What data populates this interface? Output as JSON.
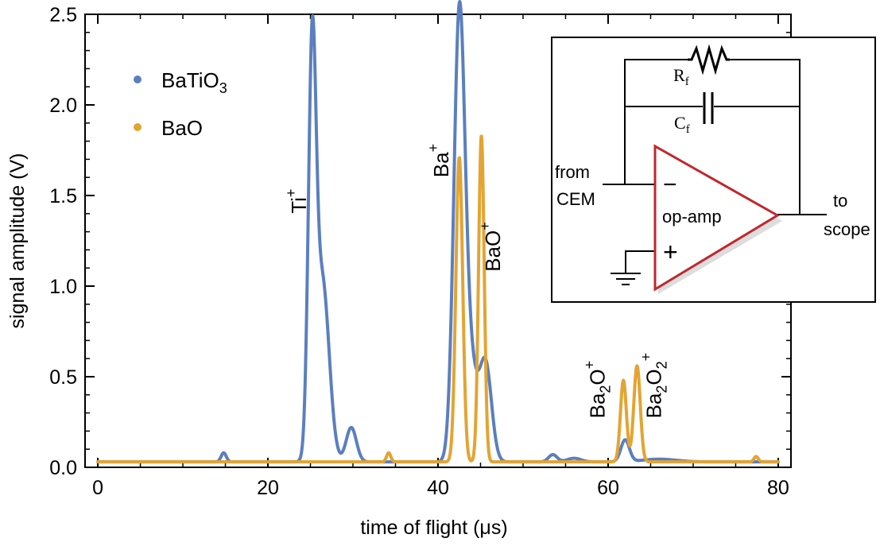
{
  "chart_data": {
    "type": "line",
    "title": "",
    "xlabel": "time of flight (μs)",
    "ylabel": "signal amplitude (V)",
    "xlim": [
      -1.5,
      81.5
    ],
    "ylim": [
      0,
      2.5
    ],
    "x_ticks": [
      "0",
      "20",
      "40",
      "60",
      "80"
    ],
    "y_ticks": [
      "0.0",
      "0.5",
      "1.0",
      "1.5",
      "2.0",
      "2.5"
    ],
    "x_tick_values": [
      0,
      20,
      40,
      60,
      80
    ],
    "y_tick_values": [
      0,
      0.5,
      1.0,
      1.5,
      2.0,
      2.5
    ],
    "baseline": 0.03,
    "legend": {
      "position": "top-left",
      "entries": [
        {
          "label": "BaTiO3",
          "base": "BaTiO",
          "sub": "3",
          "color": "#5b7fbf"
        },
        {
          "label": "BaO",
          "base": "BaO",
          "sub": "",
          "color": "#e3a432"
        }
      ]
    },
    "series": [
      {
        "name": "BaTiO3",
        "color": "#5b7fbf",
        "peaks": [
          {
            "center": 14.8,
            "amplitude": 0.05,
            "width": 0.3
          },
          {
            "center": 25.2,
            "amplitude": 2.12,
            "width": 0.45
          },
          {
            "center": 26.4,
            "amplitude": 1.0,
            "width": 0.8
          },
          {
            "center": 29.8,
            "amplitude": 0.19,
            "width": 0.6
          },
          {
            "center": 42.5,
            "amplitude": 2.4,
            "width": 0.65
          },
          {
            "center": 43.8,
            "amplitude": 0.5,
            "width": 0.8
          },
          {
            "center": 45.6,
            "amplitude": 0.53,
            "width": 0.7
          },
          {
            "center": 53.5,
            "amplitude": 0.04,
            "width": 0.5
          },
          {
            "center": 56.0,
            "amplitude": 0.02,
            "width": 0.8
          },
          {
            "center": 62.0,
            "amplitude": 0.12,
            "width": 0.5
          },
          {
            "center": 66.0,
            "amplitude": 0.015,
            "width": 2.0
          }
        ]
      },
      {
        "name": "BaO",
        "color": "#e3a432",
        "peaks": [
          {
            "center": 34.2,
            "amplitude": 0.05,
            "width": 0.25
          },
          {
            "center": 42.5,
            "amplitude": 1.68,
            "width": 0.4
          },
          {
            "center": 45.1,
            "amplitude": 1.8,
            "width": 0.33
          },
          {
            "center": 61.8,
            "amplitude": 0.45,
            "width": 0.35
          },
          {
            "center": 63.4,
            "amplitude": 0.53,
            "width": 0.38
          },
          {
            "center": 77.4,
            "amplitude": 0.03,
            "width": 0.25
          }
        ]
      }
    ],
    "annotations": [
      {
        "base": "Ti",
        "sub": "",
        "sup": "+",
        "x": 24.5,
        "y": 1.4
      },
      {
        "base": "Ba",
        "sub": "",
        "sup": "+",
        "x": 41.2,
        "y": 1.6
      },
      {
        "base": "BaO",
        "sub": "",
        "sup": "+",
        "x": 47.3,
        "y": 1.08
      },
      {
        "base": "Ba",
        "sub": "2",
        "after": "O",
        "sup": "+",
        "x": 59.6,
        "y": 0.27
      },
      {
        "base": "Ba",
        "sub": "2",
        "after": "O",
        "sub2": "2",
        "sup": "+",
        "x": 66.2,
        "y": 0.27
      }
    ]
  },
  "inset": {
    "resistor_label": "R",
    "resistor_sub": "f",
    "capacitor_label": "C",
    "capacitor_sub": "f",
    "input_label_line1": "from",
    "input_label_line2": "CEM",
    "output_label_line1": "to",
    "output_label_line2": "scope",
    "amp_label": "op-amp",
    "minus_sign": "−",
    "plus_sign": "+",
    "amp_color": "#c0272d"
  }
}
